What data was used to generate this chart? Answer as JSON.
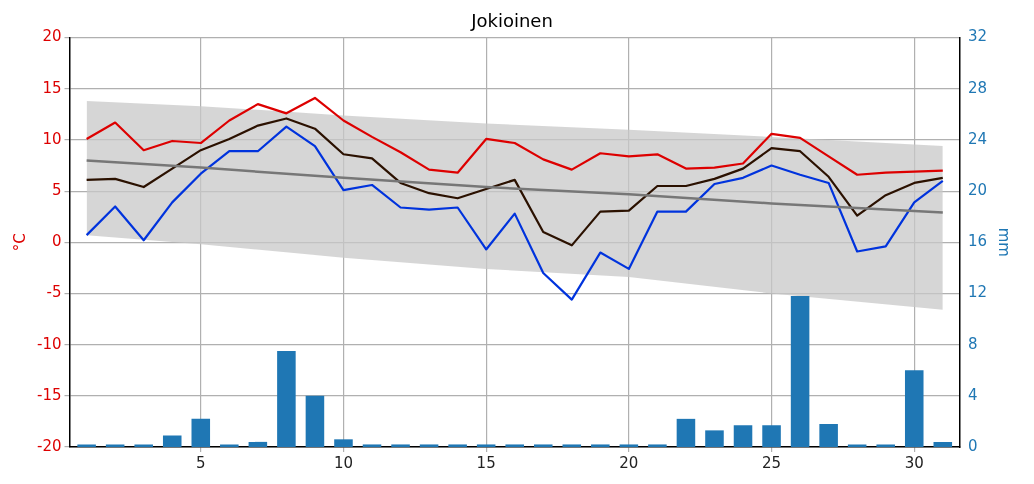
{
  "chart_data": {
    "type": "line",
    "title": "Jokioinen",
    "ylabel": "°C",
    "y2label": "mm",
    "x": [
      1,
      2,
      3,
      4,
      5,
      6,
      7,
      8,
      9,
      10,
      11,
      12,
      13,
      14,
      15,
      16,
      17,
      18,
      19,
      20,
      21,
      22,
      23,
      24,
      25,
      26,
      27,
      28,
      29,
      30,
      31
    ],
    "series": [
      {
        "color": "#777777",
        "x": [
          1,
          5,
          10,
          15,
          20,
          25,
          31
        ],
        "values": [
          8.0,
          7.3,
          6.3,
          5.4,
          4.7,
          3.8,
          2.9
        ],
        "lower": [
          0.7,
          -0.2,
          -1.5,
          -2.6,
          -3.4,
          -5.0,
          -6.6
        ],
        "upper": [
          13.8,
          13.3,
          12.4,
          11.6,
          11.0,
          10.3,
          9.4
        ]
      },
      {
        "type": "bar",
        "axis": "y2",
        "color": "#1f77b4",
        "values": [
          0.2,
          0.2,
          0.2,
          0.9,
          2.2,
          0.2,
          0.4,
          7.5,
          4.0,
          0.6,
          0.2,
          0.2,
          0.2,
          0.2,
          0.2,
          0.2,
          0.2,
          0.2,
          0.2,
          0.2,
          0.2,
          2.2,
          1.3,
          1.7,
          1.7,
          11.8,
          1.8,
          0.2,
          0.2,
          6.0,
          0.4
        ]
      },
      {
        "color": "#dd0000",
        "values": [
          10.1,
          11.7,
          9.0,
          9.9,
          9.7,
          11.9,
          13.5,
          12.6,
          14.1,
          11.9,
          10.3,
          8.8,
          7.1,
          6.8,
          10.1,
          9.7,
          8.1,
          7.1,
          8.7,
          8.4,
          8.6,
          7.2,
          7.3,
          7.7,
          10.6,
          10.2,
          8.4,
          6.6,
          6.8,
          6.9,
          7.0
        ]
      },
      {
        "color": "#2b1100",
        "values": [
          6.1,
          6.2,
          5.4,
          7.2,
          9.0,
          10.1,
          11.4,
          12.1,
          11.1,
          8.6,
          8.2,
          5.8,
          4.8,
          4.3,
          5.2,
          6.1,
          1.0,
          -0.3,
          3.0,
          3.1,
          5.5,
          5.5,
          6.2,
          7.2,
          9.2,
          8.9,
          6.4,
          2.6,
          4.6,
          5.8,
          6.3
        ]
      },
      {
        "color": "#0033dd",
        "values": [
          0.7,
          3.5,
          0.2,
          3.9,
          6.7,
          8.9,
          8.9,
          11.3,
          9.4,
          5.1,
          5.6,
          3.4,
          3.2,
          3.4,
          -0.7,
          2.8,
          -3.0,
          -5.6,
          -1.0,
          -2.6,
          3.0,
          3.0,
          5.7,
          6.3,
          7.5,
          6.6,
          5.8,
          -0.9,
          -0.4,
          3.9,
          6.0
        ]
      }
    ],
    "xlim": [
      0.4,
      31.6
    ],
    "xticks": [
      5,
      10,
      15,
      20,
      25,
      30
    ],
    "ylim": [
      -20,
      20
    ],
    "yticks": [
      -20,
      -15,
      -10,
      -5,
      0,
      5,
      10,
      15,
      20
    ],
    "y2lim": [
      0,
      32
    ],
    "y2ticks": [
      0,
      4,
      8,
      12,
      16,
      20,
      24,
      28,
      32
    ],
    "grid": true,
    "legend": false
  }
}
